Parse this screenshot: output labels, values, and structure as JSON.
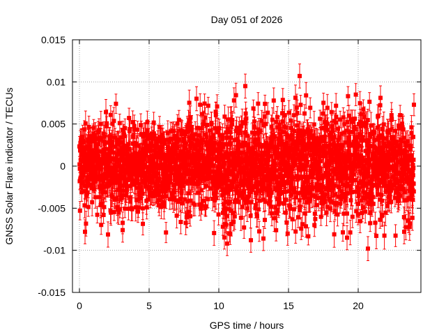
{
  "chart_data": {
    "type": "scatter",
    "title": "Day 051 of 2026",
    "xlabel": "GPS time / hours",
    "ylabel": "GNSS Solar Flare indicator / TECUs",
    "xlim": [
      -0.5,
      24.5
    ],
    "ylim": [
      -0.015,
      0.015
    ],
    "x_ticks": [
      0,
      5,
      10,
      15,
      20
    ],
    "x_tick_labels": [
      "0",
      "5",
      "10",
      "15",
      "20"
    ],
    "y_ticks": [
      -0.015,
      -0.01,
      -0.005,
      0,
      0.005,
      0.01,
      0.015
    ],
    "y_tick_labels": [
      "-0.015",
      "-0.01",
      "-0.005",
      "0",
      "0.005",
      "0.01",
      "0.015"
    ],
    "grid": true,
    "series": [
      {
        "name": "GNSS Solar Flare indicator",
        "color": "#ff0000",
        "marker": "square",
        "error_bars": true,
        "x_start": 0,
        "x_end": 24,
        "x_step": 0.01,
        "typical_abs_error": 0.0013,
        "noise_std_by_hour": [
          {
            "hour": 0,
            "std": 0.0026
          },
          {
            "hour": 4,
            "std": 0.0024
          },
          {
            "hour": 8,
            "std": 0.0027
          },
          {
            "hour": 11,
            "std": 0.0032
          },
          {
            "hour": 16,
            "std": 0.0034
          },
          {
            "hour": 20,
            "std": 0.0031
          },
          {
            "hour": 24,
            "std": 0.0028
          }
        ],
        "notable_points": [
          {
            "x": 0.4,
            "y": -0.0078
          },
          {
            "x": 3.1,
            "y": -0.0076
          },
          {
            "x": 8.4,
            "y": 0.008
          },
          {
            "x": 10.6,
            "y": -0.0092
          },
          {
            "x": 11.9,
            "y": 0.0095
          },
          {
            "x": 12.3,
            "y": -0.0088
          },
          {
            "x": 13.2,
            "y": -0.0086
          },
          {
            "x": 15.8,
            "y": 0.0107
          },
          {
            "x": 16.0,
            "y": -0.0069
          },
          {
            "x": 19.2,
            "y": -0.0085
          },
          {
            "x": 20.7,
            "y": -0.0098
          },
          {
            "x": 21.6,
            "y": 0.0081
          },
          {
            "x": 23.3,
            "y": -0.0078
          }
        ]
      }
    ]
  }
}
